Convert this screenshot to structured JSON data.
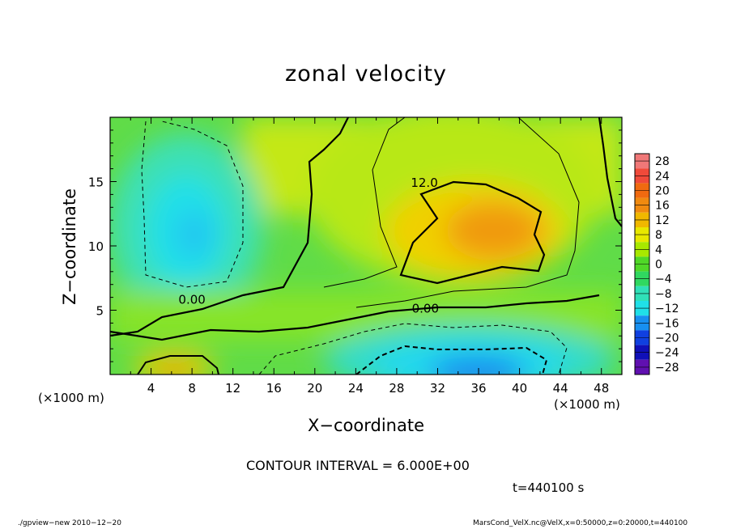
{
  "chart_data": {
    "type": "heatmap",
    "title": "zonal velocity",
    "xlabel": "X−coordinate",
    "ylabel": "Z−coordinate",
    "x_unit_label": "(×1000 m)",
    "xlim": [
      0,
      50
    ],
    "ylim": [
      0,
      20
    ],
    "x_ticks": [
      4,
      8,
      12,
      16,
      20,
      24,
      28,
      32,
      36,
      40,
      44,
      48
    ],
    "y_ticks": [
      5,
      10,
      15
    ],
    "colorbar": {
      "ticks": [
        "28",
        "24",
        "20",
        "16",
        "12",
        "8",
        "4",
        "0",
        "−4",
        "−8",
        "−12",
        "−16",
        "−20",
        "−24",
        "−28"
      ],
      "range": [
        -30,
        30
      ],
      "levels": [
        30,
        26,
        22,
        18,
        14,
        10,
        6,
        2,
        -2,
        -6,
        -10,
        -14,
        -18,
        -22,
        -26,
        -30
      ],
      "colors": [
        "#f07878",
        "#f04a3a",
        "#f06a10",
        "#f08a10",
        "#f0b800",
        "#e8e800",
        "#a8e800",
        "#50d828",
        "#30d860",
        "#30e0b8",
        "#20e0e8",
        "#1890f0",
        "#1040e0",
        "#1010b8",
        "#6010b0"
      ]
    },
    "contour_labels": [
      {
        "text": "12.0",
        "x": 30.7,
        "z": 14.6
      },
      {
        "text": "0.00",
        "x": 8.0,
        "z": 5.5
      },
      {
        "text": "0.00",
        "x": 30.8,
        "z": 4.8
      }
    ],
    "features": [
      {
        "name": "jet core max",
        "x": 36,
        "z": 12,
        "value": 16
      },
      {
        "name": "upper-left min",
        "x": 8,
        "z": 11,
        "value": -10
      },
      {
        "name": "near-surface min",
        "x": 36,
        "z": 1,
        "value": -16
      },
      {
        "name": "near-surface max",
        "x": 7,
        "z": 0.5,
        "value": 14
      }
    ],
    "contour_interval": "CONTOUR INTERVAL = 6.000E+00",
    "time": "t=440100 s"
  },
  "footer": {
    "left": "./gpview−new  2010−12−20",
    "right": "MarsCond_VelX.nc@VelX,x=0:50000,z=0:20000,t=440100"
  }
}
